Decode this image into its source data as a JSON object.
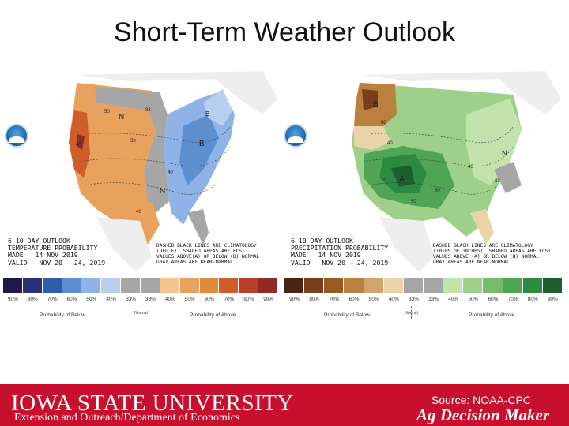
{
  "page_title": "Short-Term Weather Outlook",
  "temperature_map": {
    "outlook_title": "6-10 DAY OUTLOOK",
    "product": "TEMPERATURE PROBABILITY",
    "made": "MADE   14 NOV 2019",
    "valid": "VALID   NOV 20 - 24, 2019",
    "note": "DASHED BLACK LINES ARE CLIMATOLOGY\n(DEG F). SHADED AREAS ARE FCST\nVALUES ABOVE(A) OR BELOW (B) NORMAL\nGRAY AREAS ARE NEAR-NORMAL",
    "region_labels": [
      "N",
      "N",
      "B",
      "40",
      "50",
      "33",
      "40",
      "33",
      "40",
      "B"
    ],
    "colors": {
      "below": [
        "#1f1a4d",
        "#2c2f7a",
        "#2f5ea8",
        "#5b8fd0",
        "#8fb3e6",
        "#b8cfee"
      ],
      "normal": "#a6a6a6",
      "above": [
        "#f4c58e",
        "#e8a25e",
        "#de8b3f",
        "#cf5c2b",
        "#b8402a",
        "#8f2a26"
      ]
    },
    "scale_values": [
      "90%",
      "80%",
      "70%",
      "60%",
      "50%",
      "40%",
      "33%",
      "33%",
      "40%",
      "50%",
      "60%",
      "70%",
      "80%",
      "90%"
    ],
    "below_label": "Probability of Below",
    "normal_label": "Normal",
    "above_label": "Probability of Above"
  },
  "precipitation_map": {
    "outlook_title": "6-10 DAY OUTLOOK",
    "product": "PRECIPITATION PROBABILITY",
    "made": "MADE   14 NOV 2019",
    "valid": "VALID   NOV 20 - 24, 2019",
    "note": "DASHED BLACK LINES ARE CLIMATOLOGY\n(10THS OF INCHES). SHADED AREAS ARE FCST\nVALUES ABOVE (A) OR BELOW (B) NORMAL\nGRAY AREAS ARE NEAR-NORMAL",
    "region_labels": [
      "B",
      "50",
      "40",
      "A",
      "70",
      "50",
      "60",
      "33",
      "40",
      "N"
    ],
    "colors": {
      "below": [
        "#4a2412",
        "#7a3f18",
        "#9a5a22",
        "#b9803e",
        "#d2a469",
        "#ead3a8"
      ],
      "normal": "#a6a6a6",
      "above": [
        "#c3e3ad",
        "#9fd08a",
        "#76bb69",
        "#4fa554",
        "#2d8a43",
        "#1c5e2c"
      ]
    },
    "scale_values": [
      "90%",
      "80%",
      "70%",
      "60%",
      "50%",
      "40%",
      "33%",
      "33%",
      "40%",
      "50%",
      "60%",
      "70%",
      "80%",
      "90%"
    ],
    "below_label": "Probability of Below",
    "normal_label": "Normal",
    "above_label": "Probability of Above"
  },
  "footer": {
    "university": "IOWA STATE UNIVERSITY",
    "subtitle": "Extension and Outreach/Department of Economics",
    "source": "Source: NOAA-CPC",
    "brand": "Ag Decision Maker",
    "brand_color": "#c8102e"
  }
}
